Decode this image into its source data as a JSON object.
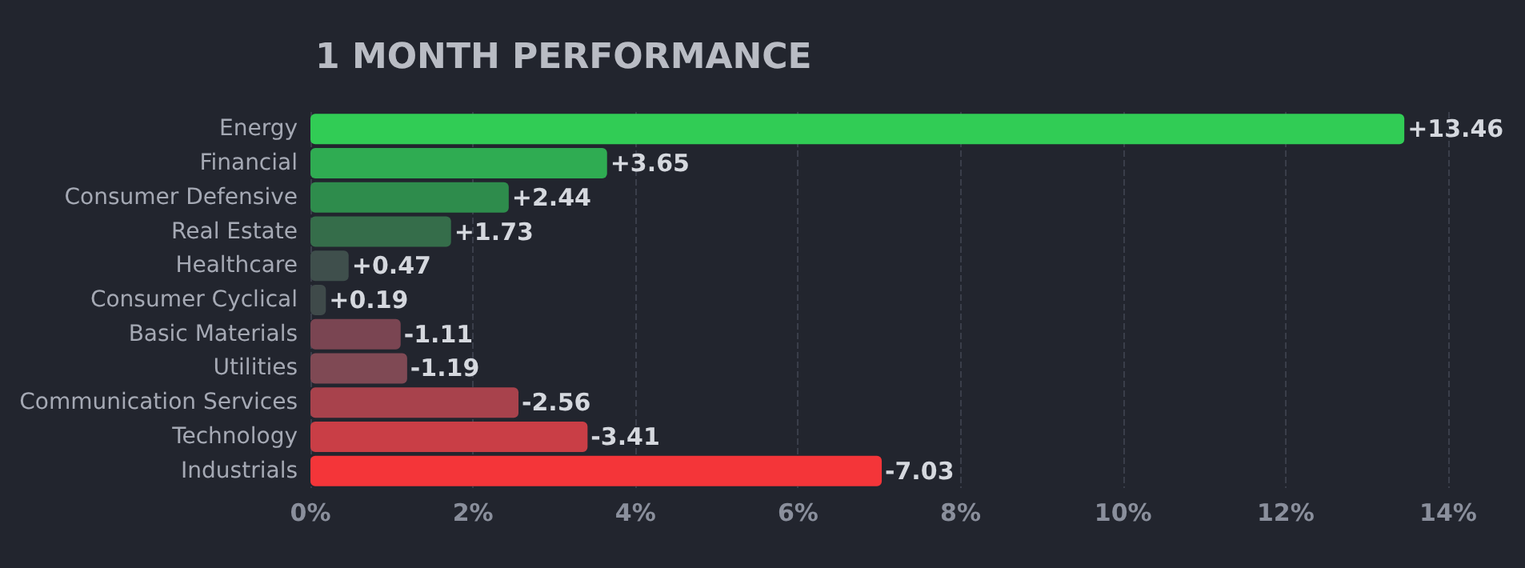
{
  "chart_data": {
    "type": "bar",
    "title": "1 MONTH PERFORMANCE",
    "orientation": "horizontal",
    "categories": [
      "Energy",
      "Financial",
      "Consumer Defensive",
      "Real Estate",
      "Healthcare",
      "Consumer Cyclical",
      "Basic Materials",
      "Utilities",
      "Communication Services",
      "Technology",
      "Industrials"
    ],
    "values": [
      13.46,
      3.65,
      2.44,
      1.73,
      0.47,
      0.19,
      -1.11,
      -1.19,
      -2.56,
      -3.41,
      -7.03
    ],
    "base": [
      0,
      0,
      0,
      0,
      0,
      0,
      1.11,
      1.19,
      2.56,
      3.41,
      7.03
    ],
    "value_labels": [
      "+13.46",
      "+3.65",
      "+2.44",
      "+1.73",
      "+0.47",
      "+0.19",
      "-1.11",
      "-1.19",
      "-2.56",
      "-3.41",
      "-7.03"
    ],
    "colors": [
      "#31cc55",
      "#2fac52",
      "#2e8c4c",
      "#356d4a",
      "#3f4f4c",
      "#3f4a4a",
      "#7a4552",
      "#7f4954",
      "#a8424c",
      "#c93e46",
      "#f43539"
    ],
    "xlim": [
      0,
      14
    ],
    "xticks": [
      {
        "value": 0,
        "label": "0%"
      },
      {
        "value": 2,
        "label": "2%"
      },
      {
        "value": 4,
        "label": "4%"
      },
      {
        "value": 6,
        "label": "6%"
      },
      {
        "value": 8,
        "label": "8%"
      },
      {
        "value": 10,
        "label": "10%"
      },
      {
        "value": 12,
        "label": "12%"
      },
      {
        "value": 14,
        "label": "14%"
      }
    ],
    "grid": "x"
  }
}
